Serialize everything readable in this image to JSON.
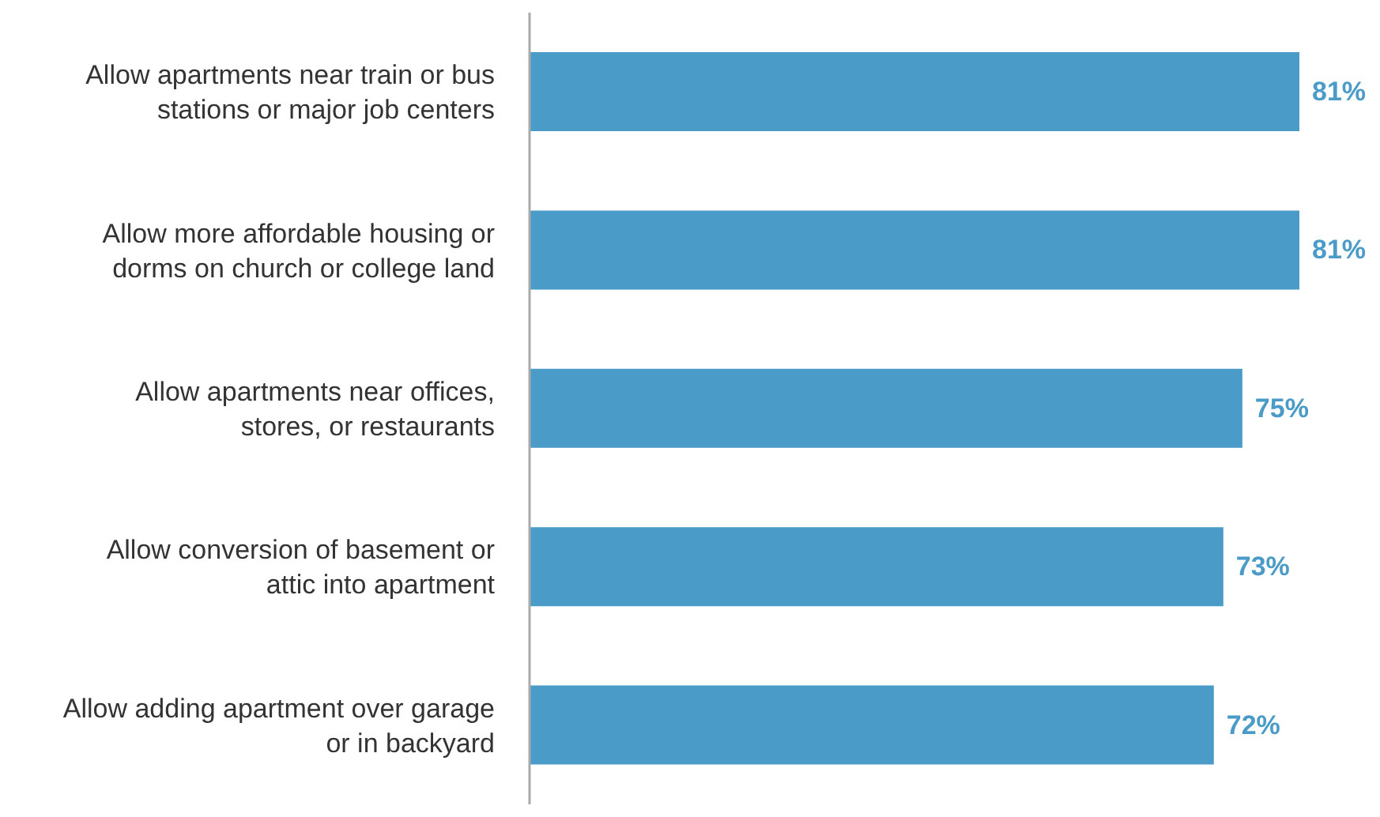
{
  "chart_data": {
    "type": "bar",
    "orientation": "horizontal",
    "categories": [
      "Allow apartments near train or bus stations or major job centers",
      "Allow more affordable housing or dorms on church or college land",
      "Allow apartments near offices, stores, or restaurants",
      "Allow conversion of basement or attic into apartment",
      "Allow adding apartment over garage or in backyard"
    ],
    "values": [
      81,
      81,
      75,
      73,
      72
    ],
    "value_labels": [
      "81%",
      "81%",
      "75%",
      "73%",
      "72%"
    ],
    "color": "#4a9bc7"
  }
}
